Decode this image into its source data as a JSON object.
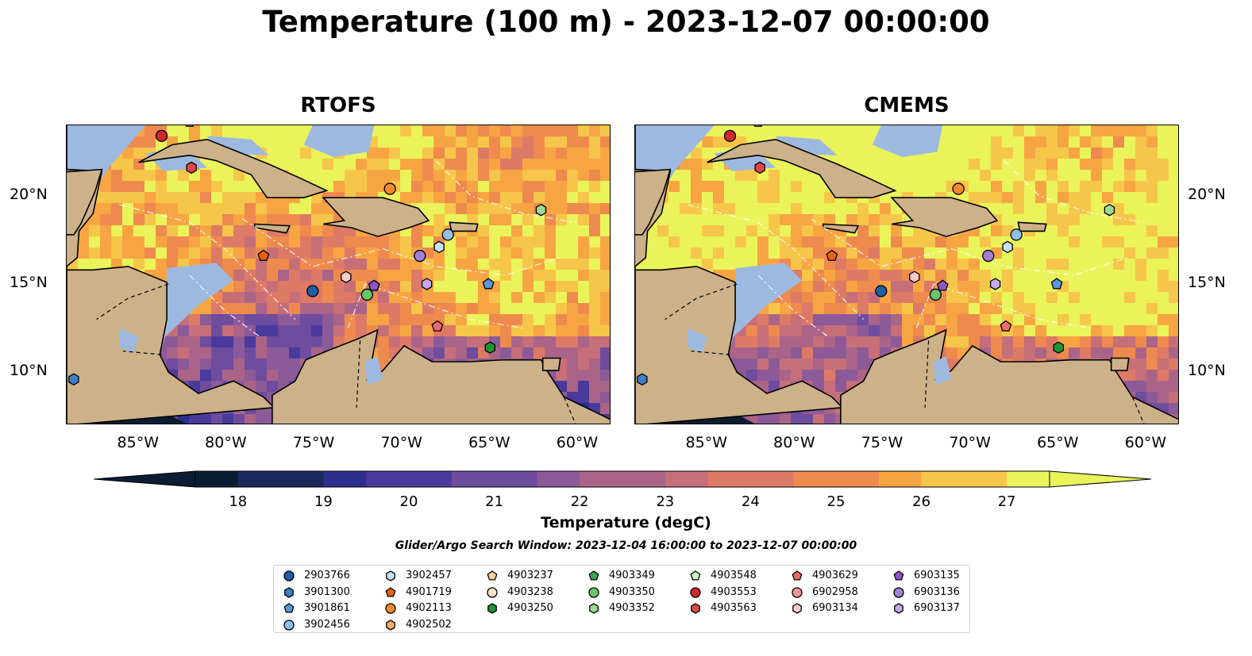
{
  "title": "Temperature (100 m) - 2023-12-07 00:00:00",
  "panels": [
    {
      "title": "RTOFS"
    },
    {
      "title": "CMEMS"
    }
  ],
  "axes": {
    "lon_ticks": [
      "85°W",
      "80°W",
      "75°W",
      "70°W",
      "65°W",
      "60°W"
    ],
    "lat_ticks": [
      "20°N",
      "15°N",
      "10°N"
    ],
    "lon_values": [
      -85,
      -80,
      -75,
      -70,
      -65,
      -60
    ],
    "lat_values": [
      20,
      15,
      10
    ],
    "lon_range": [
      -89,
      -58
    ],
    "lat_range": [
      7,
      24
    ]
  },
  "colorbar": {
    "label": "Temperature (degC)",
    "ticks": [
      "18",
      "19",
      "20",
      "21",
      "22",
      "23",
      "24",
      "25",
      "26",
      "27"
    ],
    "range": [
      17.5,
      27.5
    ],
    "extend": "both"
  },
  "search_window": "Glider/Argo Search Window: 2023-12-04 16:00:00 to 2023-12-07 00:00:00",
  "legend": {
    "columns": [
      [
        {
          "id": "2903766",
          "marker": "circle",
          "color": "#1f5fa8"
        },
        {
          "id": "3901300",
          "marker": "hexagon",
          "color": "#3c7fc4"
        },
        {
          "id": "3901861",
          "marker": "pentagon",
          "color": "#5a9ad6"
        },
        {
          "id": "3902456",
          "marker": "circle",
          "color": "#8fc0ea"
        }
      ],
      [
        {
          "id": "3902457",
          "marker": "hexagon",
          "color": "#c6e2f7"
        },
        {
          "id": "4901719",
          "marker": "pentagon",
          "color": "#e8620f"
        },
        {
          "id": "4902113",
          "marker": "circle",
          "color": "#f58a2a"
        },
        {
          "id": "4902502",
          "marker": "hexagon",
          "color": "#f9ad62"
        }
      ],
      [
        {
          "id": "4903237",
          "marker": "pentagon",
          "color": "#fbcf9c"
        },
        {
          "id": "4903238",
          "marker": "circle",
          "color": "#fde3c8"
        },
        {
          "id": "4903250",
          "marker": "hexagon",
          "color": "#1e9430"
        }
      ],
      [
        {
          "id": "4903349",
          "marker": "pentagon",
          "color": "#3aa84a"
        },
        {
          "id": "4903350",
          "marker": "circle",
          "color": "#6ac46a"
        },
        {
          "id": "4903352",
          "marker": "hexagon",
          "color": "#9adc96"
        }
      ],
      [
        {
          "id": "4903548",
          "marker": "pentagon",
          "color": "#c8f2c0"
        },
        {
          "id": "4903553",
          "marker": "circle",
          "color": "#d02828"
        },
        {
          "id": "4903563",
          "marker": "hexagon",
          "color": "#e04646"
        }
      ],
      [
        {
          "id": "4903629",
          "marker": "pentagon",
          "color": "#ea6d6d"
        },
        {
          "id": "6902958",
          "marker": "circle",
          "color": "#f39a98"
        },
        {
          "id": "6903134",
          "marker": "hexagon",
          "color": "#fbcaca"
        }
      ],
      [
        {
          "id": "6903135",
          "marker": "pentagon",
          "color": "#8b55c4"
        },
        {
          "id": "6903136",
          "marker": "circle",
          "color": "#a47fd6"
        },
        {
          "id": "6903137",
          "marker": "hexagon",
          "color": "#c4a8ea"
        }
      ]
    ]
  },
  "floats": [
    {
      "id": "2903766",
      "lon": -75.0,
      "lat": 14.6
    },
    {
      "id": "3901300",
      "lon": -88.6,
      "lat": 9.6
    },
    {
      "id": "3901861",
      "lon": -65.0,
      "lat": 15.0
    },
    {
      "id": "3902456",
      "lon": -67.3,
      "lat": 17.8
    },
    {
      "id": "3902457",
      "lon": -67.8,
      "lat": 17.1
    },
    {
      "id": "4901719",
      "lon": -77.8,
      "lat": 16.6
    },
    {
      "id": "4902113",
      "lon": -70.6,
      "lat": 20.4
    },
    {
      "id": "4903237",
      "lon": -82.0,
      "lat": 24.2
    },
    {
      "id": "4903250",
      "lon": -64.9,
      "lat": 11.4
    },
    {
      "id": "4903350",
      "lon": -71.9,
      "lat": 14.4
    },
    {
      "id": "4903352",
      "lon": -62.0,
      "lat": 19.2
    },
    {
      "id": "4903553",
      "lon": -83.6,
      "lat": 23.4
    },
    {
      "id": "4903563",
      "lon": -81.9,
      "lat": 21.6
    },
    {
      "id": "4903629",
      "lon": -67.9,
      "lat": 12.6
    },
    {
      "id": "6903134",
      "lon": -73.1,
      "lat": 15.4
    },
    {
      "id": "6903135",
      "lon": -71.5,
      "lat": 14.9
    },
    {
      "id": "6903136",
      "lon": -68.9,
      "lat": 16.6
    },
    {
      "id": "6903137",
      "lon": -68.5,
      "lat": 15.0
    }
  ]
}
